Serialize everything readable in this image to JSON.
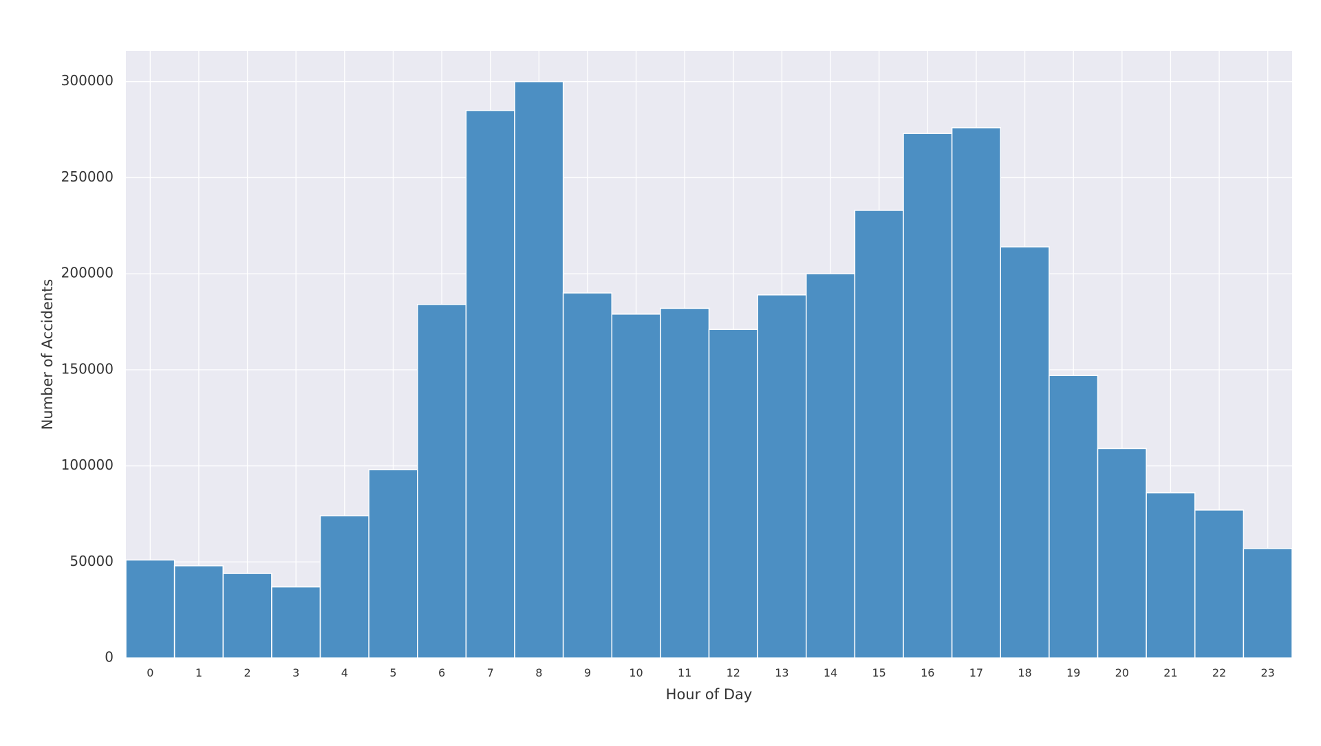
{
  "chart_data": {
    "type": "bar",
    "title": "",
    "xlabel": "Hour of Day",
    "ylabel": "Number of Accidents",
    "categories": [
      "0",
      "1",
      "2",
      "3",
      "4",
      "5",
      "6",
      "7",
      "8",
      "9",
      "10",
      "11",
      "12",
      "13",
      "14",
      "15",
      "16",
      "17",
      "18",
      "19",
      "20",
      "21",
      "22",
      "23"
    ],
    "values": [
      51000,
      48000,
      44000,
      37000,
      74000,
      98000,
      184000,
      285000,
      300000,
      190000,
      179000,
      182000,
      171000,
      189000,
      200000,
      233000,
      273000,
      276000,
      214000,
      147000,
      109000,
      86000,
      77000,
      57000
    ],
    "ylim": [
      0,
      316000
    ],
    "yticks": [
      0,
      50000,
      100000,
      150000,
      200000,
      250000,
      300000
    ],
    "ytick_labels": [
      "0",
      "50000",
      "100000",
      "150000",
      "200000",
      "250000",
      "300000"
    ],
    "grid": true,
    "legend": "none",
    "colors": {
      "bar": "#4c8fc3",
      "bar_edge": "#ffffff",
      "plot_background": "#eaeaf2",
      "grid": "#ffffff",
      "text": "#333333"
    }
  }
}
